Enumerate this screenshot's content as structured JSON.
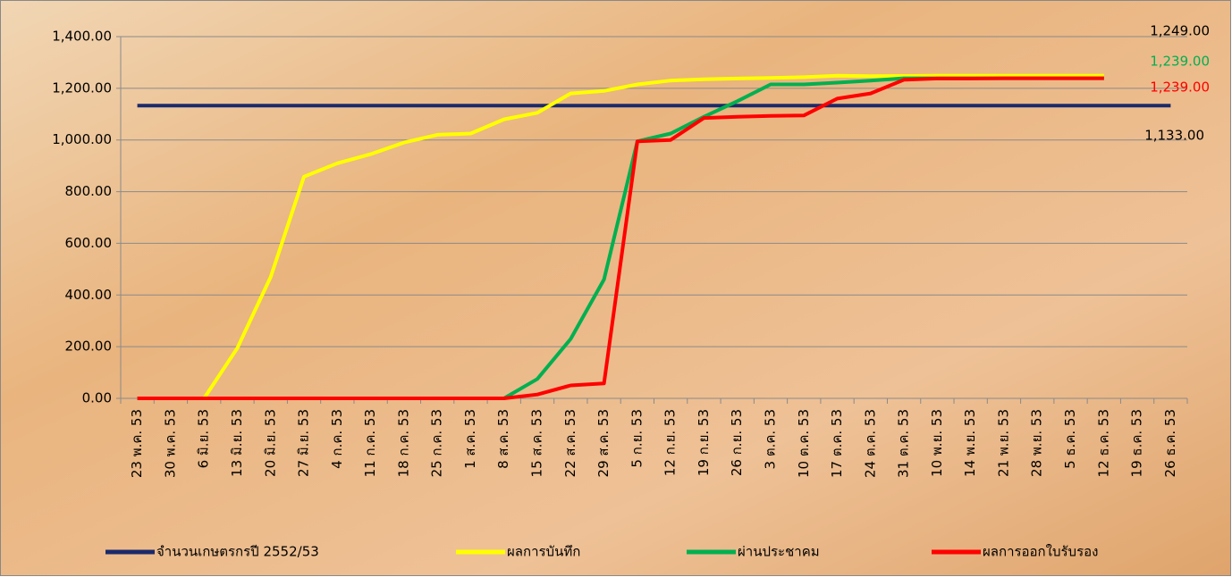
{
  "chart_data": {
    "type": "line",
    "categories": [
      "23 พ.ค. 53",
      "30 พ.ค. 53",
      "6 มิ.ย. 53",
      "13 มิ.ย. 53",
      "20 มิ.ย. 53",
      "27 มิ.ย. 53",
      "4 ก.ค. 53",
      "11 ก.ค. 53",
      "18 ก.ค. 53",
      "25 ก.ค. 53",
      "1 ส.ค. 53",
      "8 ส.ค. 53",
      "15 ส.ค. 53",
      "22 ส.ค. 53",
      "29 ส.ค. 53",
      "5 ก.ย. 53",
      "12 ก.ย. 53",
      "19 ก.ย. 53",
      "26 ก.ย. 53",
      "3 ต.ค. 53",
      "10 ต.ค. 53",
      "17 ต.ค. 53",
      "24 ต.ค. 53",
      "31 ต.ค. 53",
      "10 พ.ย. 53",
      "14 พ.ย. 53",
      "21 พ.ย. 53",
      "28 พ.ย. 53",
      "5 ธ.ค. 53",
      "12 ธ.ค. 53",
      "19 ธ.ค. 53",
      "26 ธ.ค. 53"
    ],
    "series": [
      {
        "name": "จำนวนเกษตรกรปี  2552/53",
        "color": "#1b2a6b",
        "values": [
          1133,
          1133,
          1133,
          1133,
          1133,
          1133,
          1133,
          1133,
          1133,
          1133,
          1133,
          1133,
          1133,
          1133,
          1133,
          1133,
          1133,
          1133,
          1133,
          1133,
          1133,
          1133,
          1133,
          1133,
          1133,
          1133,
          1133,
          1133,
          1133,
          1133,
          1133,
          1133
        ]
      },
      {
        "name": "ผลการบันทึก",
        "color": "#ffff00",
        "values": [
          0,
          0,
          0,
          195,
          470,
          858,
          910,
          945,
          990,
          1020,
          1025,
          1080,
          1105,
          1180,
          1190,
          1215,
          1230,
          1235,
          1238,
          1240,
          1243,
          1249,
          1247,
          1248,
          1249,
          1249,
          1249,
          1249,
          1249,
          1249,
          null,
          null
        ]
      },
      {
        "name": "ผ่านประชาคม",
        "color": "#00b050",
        "values": [
          0,
          0,
          0,
          0,
          0,
          0,
          0,
          0,
          0,
          0,
          0,
          0,
          75,
          230,
          460,
          995,
          1025,
          1090,
          1150,
          1215,
          1215,
          1222,
          1230,
          1239,
          1239,
          1239,
          1239,
          1239,
          1239,
          1239,
          null,
          null
        ]
      },
      {
        "name": "ผลการออกใบรับรอง",
        "color": "#ff0000",
        "values": [
          0,
          0,
          0,
          0,
          0,
          0,
          0,
          0,
          0,
          0,
          0,
          0,
          15,
          50,
          58,
          995,
          1000,
          1085,
          1090,
          1093,
          1095,
          1160,
          1180,
          1233,
          1238,
          1238,
          1239,
          1239,
          1239,
          1239,
          null,
          null
        ]
      }
    ],
    "ylim": [
      0,
      1400
    ],
    "yticks": [
      {
        "value": 0,
        "label": "0.00"
      },
      {
        "value": 200,
        "label": "200.00"
      },
      {
        "value": 400,
        "label": "400.00"
      },
      {
        "value": 600,
        "label": "600.00"
      },
      {
        "value": 800,
        "label": "800.00"
      },
      {
        "value": 1000,
        "label": "1,000.00"
      },
      {
        "value": 1200,
        "label": "1,200.00"
      },
      {
        "value": 1400,
        "label": "1,400.00"
      }
    ],
    "grid": true,
    "legend": "bottom",
    "annotations": [
      {
        "text": "1,249.00",
        "color": "#000000"
      },
      {
        "text": "1,239.00",
        "color": "#00b050"
      },
      {
        "text": "1,239.00",
        "color": "#ff0000"
      },
      {
        "text": "1,133.00",
        "color": "#000000"
      }
    ]
  }
}
